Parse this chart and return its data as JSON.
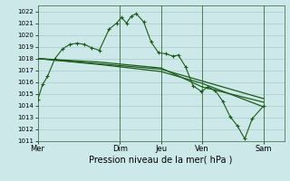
{
  "xlabel": "Pression niveau de la mer( hPa )",
  "ylim": [
    1011,
    1022.5
  ],
  "yticks": [
    1011,
    1012,
    1013,
    1014,
    1015,
    1016,
    1017,
    1018,
    1019,
    1020,
    1021,
    1022
  ],
  "bg_color": "#cde8e8",
  "grid_color": "#aacccc",
  "line_color": "#1a5c1a",
  "vline_color": "#336633",
  "xtick_labels": [
    "Mer",
    "Dim",
    "Jeu",
    "Ven",
    "Sam"
  ],
  "xtick_positions": [
    0,
    0.333,
    0.5,
    0.667,
    0.917
  ],
  "vline_positions": [
    0.333,
    0.5,
    0.667,
    0.917
  ],
  "line1_x": [
    0,
    0.02,
    0.04,
    0.07,
    0.1,
    0.13,
    0.16,
    0.19,
    0.22,
    0.25,
    0.29,
    0.32,
    0.34,
    0.36,
    0.38,
    0.4,
    0.43,
    0.46,
    0.49,
    0.52,
    0.55,
    0.57,
    0.6,
    0.63,
    0.665,
    0.69,
    0.72,
    0.75,
    0.78,
    0.81,
    0.84,
    0.87,
    0.917
  ],
  "line1_y": [
    1014.5,
    1015.8,
    1016.5,
    1018.0,
    1018.8,
    1019.2,
    1019.3,
    1019.2,
    1018.9,
    1018.7,
    1020.5,
    1021.0,
    1021.5,
    1021.0,
    1021.6,
    1021.8,
    1021.1,
    1019.4,
    1018.5,
    1018.4,
    1018.2,
    1018.3,
    1017.3,
    1015.7,
    1015.2,
    1015.6,
    1015.3,
    1014.4,
    1013.1,
    1012.3,
    1011.2,
    1012.9,
    1014.0
  ],
  "line2_x": [
    0,
    0.25,
    0.5,
    0.667,
    0.917
  ],
  "line2_y": [
    1018.0,
    1017.7,
    1017.2,
    1015.6,
    1014.3
  ],
  "line3_x": [
    0,
    0.25,
    0.5,
    0.667,
    0.917
  ],
  "line3_y": [
    1018.0,
    1017.5,
    1016.9,
    1015.9,
    1013.9
  ],
  "line4_x": [
    0,
    0.5,
    0.917
  ],
  "line4_y": [
    1018.0,
    1017.1,
    1014.6
  ],
  "figsize": [
    3.2,
    2.0
  ],
  "dpi": 100
}
